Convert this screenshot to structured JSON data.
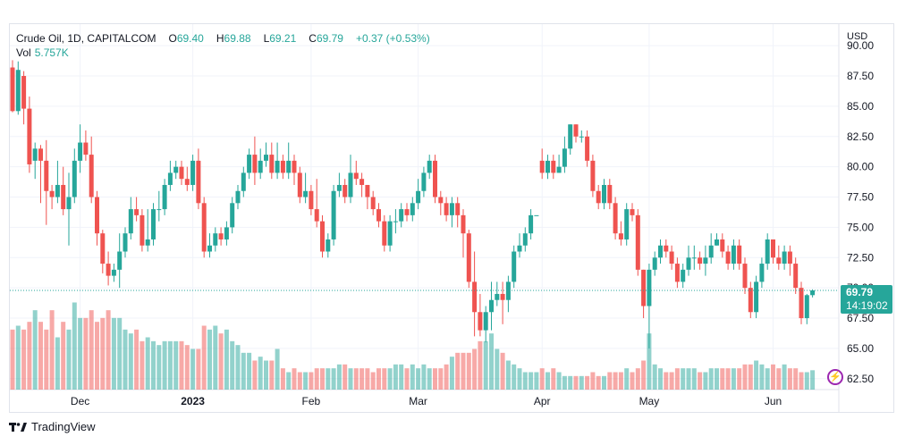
{
  "legend": {
    "symbol": "Crude Oil, 1D, CAPITALCOM",
    "o_label": "O",
    "o_value": "69.40",
    "h_label": "H",
    "h_value": "69.88",
    "l_label": "L",
    "l_value": "69.21",
    "c_label": "C",
    "c_value": "69.79",
    "change": "+0.37 (+0.53%)"
  },
  "volume_legend": {
    "label": "Vol",
    "value": "5.757K"
  },
  "price_tag": {
    "price": "69.79",
    "countdown": "14:19:02"
  },
  "footer": {
    "brand": "TradingView"
  },
  "colors": {
    "up": "#26a69a",
    "down": "#ef5350",
    "vol_up": "#26a69a",
    "vol_down": "#ef5350"
  },
  "chart_data": {
    "type": "candlestick",
    "title": "Crude Oil, 1D, CAPITALCOM",
    "currency_label": "USD",
    "ylim": [
      61.6,
      90.6
    ],
    "y_ticks": [
      "90.00",
      "87.50",
      "85.00",
      "82.50",
      "80.00",
      "77.50",
      "75.00",
      "72.50",
      "70.00",
      "67.50",
      "65.00",
      "62.50"
    ],
    "x_ticks": [
      {
        "label": "Dec",
        "bar": 12
      },
      {
        "label": "2023",
        "bar": 32
      },
      {
        "label": "Feb",
        "bar": 53
      },
      {
        "label": "Mar",
        "bar": 72
      },
      {
        "label": "Apr",
        "bar": 94
      },
      {
        "label": "May",
        "bar": 113
      },
      {
        "label": "Jun",
        "bar": 135
      }
    ],
    "last_price": 69.79,
    "candles": [
      [
        88.2,
        84.6,
        88.8,
        84.5
      ],
      [
        84.6,
        88.0,
        88.7,
        84.3
      ],
      [
        87.5,
        84.8,
        87.9,
        83.5
      ],
      [
        84.8,
        80.2,
        85.8,
        79.5
      ],
      [
        80.5,
        81.5,
        82.0,
        79.0
      ],
      [
        81.5,
        80.5,
        81.8,
        77.0
      ],
      [
        80.5,
        78.0,
        82.2,
        75.2
      ],
      [
        78.0,
        77.5,
        78.5,
        76.5
      ],
      [
        77.5,
        78.5,
        80.5,
        77.0
      ],
      [
        78.5,
        76.5,
        80.0,
        76.0
      ],
      [
        76.5,
        77.5,
        79.5,
        73.5
      ],
      [
        77.5,
        80.5,
        81.5,
        77.0
      ],
      [
        80.5,
        82.0,
        83.5,
        79.5
      ],
      [
        82.0,
        81.0,
        83.0,
        80.5
      ],
      [
        81.0,
        77.5,
        82.5,
        77.0
      ],
      [
        77.5,
        74.5,
        78.0,
        73.5
      ],
      [
        74.5,
        72.0,
        74.8,
        71.2
      ],
      [
        72.0,
        71.0,
        73.0,
        70.2
      ],
      [
        71.0,
        71.5,
        72.0,
        70.5
      ],
      [
        71.5,
        73.0,
        74.5,
        70.0
      ],
      [
        73.0,
        74.5,
        75.0,
        72.5
      ],
      [
        74.5,
        76.5,
        77.5,
        74.0
      ],
      [
        76.5,
        76.0,
        77.5,
        75.5
      ],
      [
        76.0,
        73.5,
        76.5,
        73.0
      ],
      [
        73.5,
        74.0,
        76.5,
        73.0
      ],
      [
        74.0,
        76.5,
        77.0,
        73.5
      ],
      [
        76.5,
        76.5,
        78.0,
        75.5
      ],
      [
        76.5,
        78.5,
        79.0,
        76.0
      ],
      [
        78.5,
        79.5,
        80.5,
        78.0
      ],
      [
        79.5,
        80.0,
        80.5,
        79.0
      ],
      [
        80.0,
        79.0,
        80.5,
        78.5
      ],
      [
        79.0,
        78.5,
        80.0,
        78.0
      ],
      [
        78.5,
        80.5,
        81.0,
        78.0
      ],
      [
        80.5,
        77.0,
        81.5,
        76.5
      ],
      [
        77.0,
        73.0,
        77.5,
        72.5
      ],
      [
        73.0,
        73.5,
        74.5,
        72.5
      ],
      [
        73.5,
        74.5,
        75.0,
        73.0
      ],
      [
        74.5,
        74.0,
        75.0,
        73.5
      ],
      [
        74.0,
        75.0,
        75.5,
        73.5
      ],
      [
        75.0,
        77.0,
        77.5,
        74.5
      ],
      [
        77.0,
        78.0,
        78.5,
        76.5
      ],
      [
        78.0,
        79.5,
        80.0,
        77.5
      ],
      [
        79.5,
        81.0,
        81.5,
        79.0
      ],
      [
        81.0,
        79.5,
        82.5,
        78.5
      ],
      [
        79.5,
        80.5,
        81.5,
        79.0
      ],
      [
        80.5,
        81.0,
        82.0,
        80.0
      ],
      [
        81.0,
        79.5,
        82.0,
        79.0
      ],
      [
        79.5,
        80.5,
        82.0,
        79.0
      ],
      [
        80.5,
        79.5,
        81.0,
        79.0
      ],
      [
        79.5,
        80.5,
        82.0,
        79.0
      ],
      [
        80.5,
        79.5,
        81.0,
        78.5
      ],
      [
        79.5,
        77.5,
        80.0,
        77.0
      ],
      [
        77.5,
        78.0,
        79.5,
        77.0
      ],
      [
        78.0,
        76.5,
        78.5,
        76.0
      ],
      [
        76.5,
        75.5,
        79.0,
        75.0
      ],
      [
        75.5,
        73.0,
        76.0,
        72.5
      ],
      [
        73.0,
        74.0,
        74.5,
        72.5
      ],
      [
        74.0,
        78.0,
        78.5,
        73.5
      ],
      [
        78.0,
        78.5,
        79.5,
        77.5
      ],
      [
        78.5,
        77.5,
        79.0,
        77.0
      ],
      [
        77.5,
        79.5,
        81.0,
        77.0
      ],
      [
        79.5,
        79.0,
        80.5,
        78.5
      ],
      [
        79.0,
        78.5,
        79.5,
        77.5
      ],
      [
        78.5,
        77.5,
        78.5,
        76.5
      ],
      [
        77.5,
        76.5,
        78.0,
        76.0
      ],
      [
        76.5,
        75.5,
        77.0,
        75.0
      ],
      [
        75.5,
        73.5,
        76.0,
        73.0
      ],
      [
        73.5,
        75.5,
        76.0,
        73.0
      ],
      [
        75.5,
        75.5,
        76.5,
        74.5
      ],
      [
        75.5,
        76.5,
        77.0,
        75.0
      ],
      [
        76.5,
        76.0,
        77.0,
        75.5
      ],
      [
        76.0,
        77.0,
        77.5,
        75.5
      ],
      [
        77.0,
        78.0,
        79.0,
        76.5
      ],
      [
        78.0,
        79.5,
        80.0,
        77.5
      ],
      [
        79.5,
        80.5,
        81.0,
        79.0
      ],
      [
        80.5,
        77.5,
        81.0,
        77.0
      ],
      [
        77.5,
        77.0,
        78.0,
        76.0
      ],
      [
        77.0,
        76.0,
        77.5,
        75.5
      ],
      [
        76.0,
        77.0,
        77.5,
        75.0
      ],
      [
        77.0,
        76.0,
        77.5,
        75.0
      ],
      [
        76.0,
        74.5,
        76.5,
        72.5
      ],
      [
        74.5,
        70.5,
        74.8,
        70.0
      ],
      [
        70.5,
        68.0,
        73.0,
        66.0
      ],
      [
        68.0,
        66.5,
        69.5,
        66.0
      ],
      [
        66.5,
        68.0,
        68.5,
        65.5
      ],
      [
        68.0,
        69.0,
        70.5,
        66.5
      ],
      [
        69.0,
        69.5,
        70.5,
        68.5
      ],
      [
        69.5,
        69.0,
        70.5,
        67.0
      ],
      [
        69.0,
        70.5,
        71.0,
        68.0
      ],
      [
        70.5,
        73.0,
        73.5,
        70.0
      ],
      [
        73.0,
        73.5,
        74.5,
        72.5
      ],
      [
        73.5,
        74.5,
        75.0,
        73.0
      ],
      [
        74.5,
        76.0,
        76.5,
        74.0
      ],
      [
        76.0,
        76.0,
        76.0,
        76.0
      ],
      [
        80.5,
        79.5,
        81.5,
        79.0
      ],
      [
        79.5,
        80.5,
        81.0,
        79.0
      ],
      [
        80.5,
        79.5,
        81.0,
        79.0
      ],
      [
        79.5,
        80.0,
        81.0,
        79.5
      ],
      [
        80.0,
        81.5,
        82.5,
        79.5
      ],
      [
        81.5,
        83.5,
        83.5,
        81.0
      ],
      [
        83.5,
        82.5,
        83.5,
        82.0
      ],
      [
        82.5,
        82.5,
        83.0,
        82.0
      ],
      [
        82.5,
        80.5,
        83.0,
        80.0
      ],
      [
        80.5,
        78.0,
        81.0,
        77.5
      ],
      [
        78.0,
        77.0,
        78.5,
        76.5
      ],
      [
        77.0,
        78.5,
        79.0,
        76.5
      ],
      [
        78.5,
        77.0,
        79.0,
        76.5
      ],
      [
        77.0,
        74.5,
        77.5,
        74.0
      ],
      [
        74.5,
        74.0,
        75.5,
        73.5
      ],
      [
        74.0,
        76.5,
        77.0,
        73.5
      ],
      [
        76.5,
        76.0,
        77.0,
        75.5
      ],
      [
        76.0,
        71.5,
        76.5,
        71.0
      ],
      [
        71.5,
        68.5,
        71.5,
        67.5
      ],
      [
        68.5,
        71.5,
        72.0,
        65.0
      ],
      [
        71.5,
        72.5,
        73.0,
        71.0
      ],
      [
        72.5,
        73.5,
        74.0,
        72.0
      ],
      [
        73.5,
        73.0,
        74.0,
        72.5
      ],
      [
        73.0,
        72.0,
        73.5,
        71.5
      ],
      [
        72.0,
        70.5,
        72.5,
        70.0
      ],
      [
        70.5,
        71.5,
        72.0,
        70.0
      ],
      [
        71.5,
        72.5,
        73.5,
        71.0
      ],
      [
        72.5,
        72.5,
        73.5,
        71.5
      ],
      [
        72.5,
        72.0,
        73.0,
        71.5
      ],
      [
        72.0,
        72.5,
        73.5,
        71.0
      ],
      [
        72.5,
        73.5,
        74.5,
        72.0
      ],
      [
        73.5,
        74.0,
        74.5,
        73.5
      ],
      [
        74.0,
        73.0,
        74.5,
        72.5
      ],
      [
        73.0,
        72.0,
        73.5,
        71.5
      ],
      [
        72.0,
        73.5,
        74.0,
        71.5
      ],
      [
        73.5,
        72.0,
        74.0,
        71.5
      ],
      [
        72.0,
        70.0,
        72.5,
        69.5
      ],
      [
        70.0,
        68.0,
        70.5,
        67.5
      ],
      [
        68.0,
        70.5,
        71.0,
        67.5
      ],
      [
        70.5,
        72.0,
        72.5,
        70.0
      ],
      [
        72.0,
        74.0,
        74.5,
        71.5
      ],
      [
        74.0,
        72.5,
        74.0,
        72.0
      ],
      [
        72.5,
        72.0,
        73.5,
        71.5
      ],
      [
        72.0,
        73.0,
        73.5,
        71.5
      ],
      [
        73.0,
        72.0,
        73.5,
        71.0
      ],
      [
        72.0,
        70.0,
        72.5,
        69.5
      ],
      [
        70.0,
        67.5,
        70.5,
        67.0
      ],
      [
        67.5,
        69.4,
        69.5,
        67.0
      ],
      [
        69.4,
        69.79,
        69.88,
        69.21
      ]
    ],
    "volume": [
      1.55,
      1.65,
      1.55,
      1.75,
      2.05,
      1.75,
      1.55,
      2.05,
      1.35,
      1.75,
      1.55,
      2.25,
      1.85,
      1.85,
      2.05,
      1.75,
      1.85,
      2.05,
      1.85,
      1.85,
      1.55,
      1.45,
      1.55,
      1.25,
      1.35,
      1.25,
      1.15,
      1.25,
      1.25,
      1.25,
      1.25,
      1.15,
      1.05,
      1.05,
      1.65,
      1.55,
      1.65,
      1.45,
      1.55,
      1.25,
      1.15,
      0.95,
      0.95,
      0.75,
      0.85,
      0.75,
      0.75,
      1.05,
      0.55,
      0.45,
      0.55,
      0.45,
      0.45,
      0.45,
      0.55,
      0.55,
      0.55,
      0.55,
      0.65,
      0.65,
      0.55,
      0.55,
      0.55,
      0.55,
      0.45,
      0.55,
      0.55,
      0.55,
      0.65,
      0.65,
      0.55,
      0.65,
      0.55,
      0.65,
      0.55,
      0.55,
      0.55,
      0.65,
      0.85,
      0.95,
      0.95,
      0.95,
      1.05,
      1.25,
      1.25,
      1.45,
      1.05,
      0.95,
      0.75,
      0.65,
      0.55,
      0.45,
      0.45,
      0.45,
      0.55,
      0.45,
      0.55,
      0.45,
      0.35,
      0.35,
      0.35,
      0.35,
      0.35,
      0.45,
      0.35,
      0.35,
      0.45,
      0.45,
      0.45,
      0.55,
      0.45,
      0.55,
      0.75,
      1.45,
      0.65,
      0.55,
      0.45,
      0.45,
      0.55,
      0.55,
      0.55,
      0.55,
      0.45,
      0.45,
      0.55,
      0.55,
      0.55,
      0.55,
      0.55,
      0.55,
      0.65,
      0.65,
      0.75,
      0.65,
      0.55,
      0.65,
      0.55,
      0.65,
      0.55,
      0.55,
      0.45,
      0.45,
      0.5
    ],
    "volume_max": 3.0
  }
}
